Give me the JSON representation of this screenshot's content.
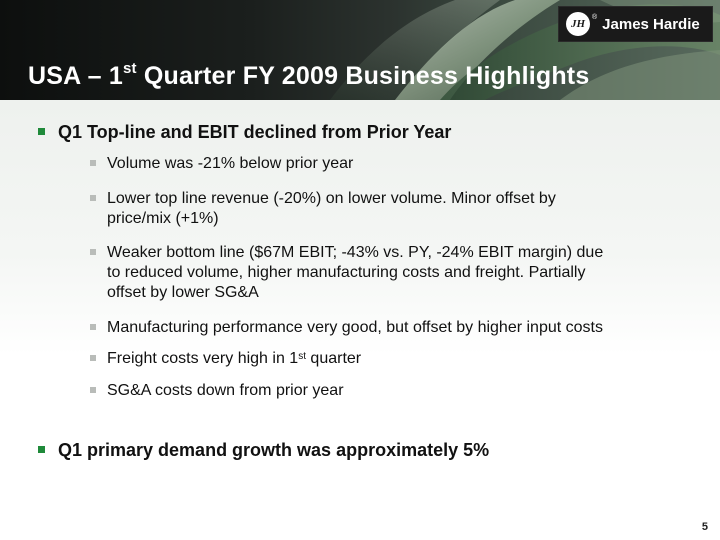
{
  "header": {
    "title_prefix": "USA – 1",
    "title_sup": "st",
    "title_suffix": " Quarter FY 2009 Business Highlights"
  },
  "logo": {
    "mark": "JH",
    "reg": "®",
    "text": "James Hardie"
  },
  "bullets": [
    {
      "text": "Q1 Top-line and EBIT declined from Prior Year",
      "subs": [
        {
          "lines": [
            "Volume was -21% below prior year"
          ]
        },
        {
          "lines": [
            "Lower top line revenue (-20%) on lower volume.  Minor offset by",
            "price/mix (+1%)"
          ]
        },
        {
          "lines": [
            "Weaker bottom line ($67M EBIT; -43% vs. PY, -24% EBIT margin) due",
            "to reduced volume, higher manufacturing costs and freight.  Partially",
            "offset by lower SG&A"
          ]
        },
        {
          "lines": [
            "Manufacturing performance very good, but offset by higher input costs"
          ]
        },
        {
          "pre": "Freight costs very high in 1",
          "sup": "st",
          "post": " quarter"
        },
        {
          "lines": [
            "SG&A costs down from prior year"
          ]
        }
      ]
    },
    {
      "text": "Q1 primary demand growth was approximately 5%"
    }
  ],
  "page_number": "5"
}
